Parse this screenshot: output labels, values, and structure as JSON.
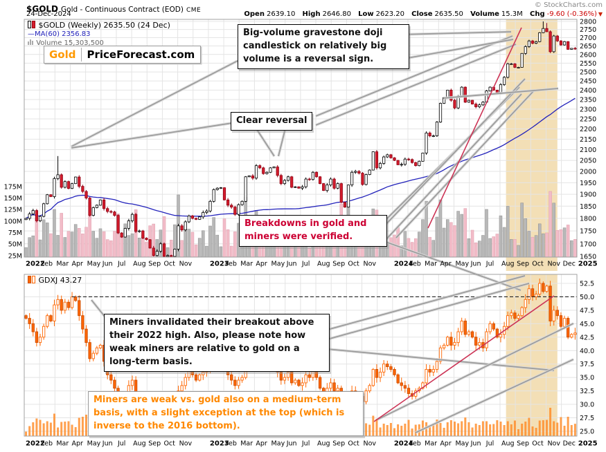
{
  "header": {
    "symbol": "$GOLD",
    "name": "Gold - Continuous Contract (EOD)",
    "exchange": "CME",
    "copyright": "© StockCharts.com",
    "date": "24-Dec-2024",
    "labels": {
      "open": "Open",
      "high": "High",
      "low": "Low",
      "close": "Close",
      "volume": "Volume",
      "chg": "Chg"
    },
    "values": {
      "open": "2639.10",
      "high": "2646.80",
      "low": "2623.20",
      "close": "2635.50",
      "volume": "15.3M",
      "chg": "-9.60 (-0.36%)"
    }
  },
  "logo": {
    "left": "Gold",
    "right": "PriceForecast.com"
  },
  "gold_panel": {
    "legend": "$GOLD (Weekly) 2635.50 (24 Dec)",
    "ma_dash": "—",
    "ma_legend": "MA(60) 2356.83",
    "volume_legend": "Volume 15,303,500"
  },
  "gdxj_panel": {
    "legend": "GDXJ 43.27"
  },
  "annotations": {
    "big_volume": "Big-volume gravestone doji candlestick on relatively big volume is a reversal sign.",
    "clear_reversal": "Clear reversal",
    "breakdowns": "Breakdowns in gold and miners were verified.",
    "miners_invalidated": "Miners invalidated their breakout above their 2022 high. Also, please note how weak miners are relative to gold on a long-term basis.",
    "miners_weak": "Miners are weak vs. gold also on a medium-term basis, with a slight exception at the top (which is inverse to the 2016 bottom)."
  },
  "colors": {
    "up_candle": "#ffffff",
    "down_candle": "#d41c2c",
    "down_stroke": "#8e0012",
    "gdxj": "#ff6600",
    "gdxj_stroke": "#cc4d00",
    "ma": "#2222bb",
    "band": "#f3dfb6",
    "vol_up": "#b8b8b8",
    "vol_down": "#f2bcc8",
    "grid": "#e4e4e4",
    "border": "#a0a0a0",
    "red_line": "#cc3355",
    "gray_line": "#9b9b9b",
    "accent_red": "#cc0033",
    "accent_orange": "#ff8800"
  },
  "chart_data": [
    {
      "type": "candlestick",
      "symbol": "$GOLD",
      "timeframe": "weekly",
      "title": "$GOLD (Weekly)",
      "scale": "log",
      "ylim": [
        1650,
        2800
      ],
      "yticks": [
        2800,
        2750,
        2700,
        2650,
        2600,
        2550,
        2500,
        2450,
        2400,
        2350,
        2300,
        2250,
        2200,
        2150,
        2100,
        2050,
        2000,
        1950,
        1900,
        1850,
        1800,
        1750,
        1700,
        1650
      ],
      "volume_ticks": [
        175,
        150,
        125,
        100,
        75,
        50,
        25
      ],
      "months": [
        [
          "2022",
          0,
          1
        ],
        [
          "Feb",
          1,
          0
        ],
        [
          "Mar",
          2,
          0
        ],
        [
          "Apr",
          3,
          0
        ],
        [
          "May",
          4,
          0
        ],
        [
          "Jun",
          5,
          0
        ],
        [
          "Jul",
          6,
          0
        ],
        [
          "Aug",
          7,
          0
        ],
        [
          "Sep",
          8,
          0
        ],
        [
          "Oct",
          9,
          0
        ],
        [
          "Nov",
          10,
          0
        ],
        [
          "2023",
          12,
          1
        ],
        [
          "Feb",
          13,
          0
        ],
        [
          "Mar",
          14,
          0
        ],
        [
          "Apr",
          15,
          0
        ],
        [
          "May",
          16,
          0
        ],
        [
          "Jun",
          17,
          0
        ],
        [
          "Jul",
          18,
          0
        ],
        [
          "Aug",
          19,
          0
        ],
        [
          "Sep",
          20,
          0
        ],
        [
          "Oct",
          21,
          0
        ],
        [
          "Nov",
          22,
          0
        ],
        [
          "2024",
          24,
          1
        ],
        [
          "Feb",
          25,
          0
        ],
        [
          "Mar",
          26,
          0
        ],
        [
          "Apr",
          27,
          0
        ],
        [
          "May",
          28,
          0
        ],
        [
          "Jun",
          29,
          0
        ],
        [
          "Jul",
          30,
          0
        ],
        [
          "Aug",
          31,
          0
        ],
        [
          "Sep",
          32,
          0
        ],
        [
          "Oct",
          33,
          0
        ],
        [
          "Nov",
          34,
          0
        ],
        [
          "Dec",
          35,
          0
        ],
        [
          "2025",
          36,
          1
        ]
      ],
      "closes": [
        1800,
        1818,
        1832,
        1790,
        1808,
        1860,
        1898,
        1890,
        1968,
        1985,
        1930,
        1955,
        1925,
        1946,
        1975,
        1934,
        1912,
        1884,
        1812,
        1844,
        1854,
        1876,
        1840,
        1828,
        1826,
        1812,
        1742,
        1726,
        1760,
        1790,
        1816,
        1748,
        1750,
        1722,
        1716,
        1684,
        1656,
        1672,
        1700,
        1652,
        1656,
        1644,
        1680,
        1770,
        1754,
        1786,
        1810,
        1800,
        1796,
        1806,
        1824,
        1830,
        1870,
        1920,
        1926,
        1928,
        1876,
        1854,
        1846,
        1816,
        1856,
        1870,
        1976,
        1980,
        1970,
        2026,
        2016,
        1990,
        1996,
        2016,
        2020,
        1982,
        1946,
        1960,
        1976,
        1930,
        1932,
        1926,
        1932,
        1966,
        1964,
        1996,
        1976,
        1946,
        1916,
        1940,
        1966,
        1926,
        1946,
        1866,
        1846,
        1940,
        1996,
        2000,
        1992,
        1942,
        1986,
        2006,
        2090,
        2016,
        2036,
        2066,
        2076,
        2062,
        2050,
        2030,
        2032,
        2056,
        2054,
        2040,
        2026,
        2046,
        2084,
        2180,
        2166,
        2166,
        2234,
        2330,
        2360,
        2400,
        2346,
        2306,
        2368,
        2416,
        2336,
        2346,
        2326,
        2312,
        2322,
        2336,
        2396,
        2416,
        2400,
        2386,
        2430,
        2470,
        2546,
        2546,
        2526,
        2526,
        2606,
        2646,
        2680,
        2666,
        2676,
        2730,
        2756,
        2736,
        2616,
        2710,
        2680,
        2656,
        2676,
        2630,
        2636,
        2635
      ],
      "wick_highs": {
        "9": 2070,
        "146": 2800,
        "147": 2790
      },
      "ma_period": 60,
      "ma_last": 2356.83,
      "last_close": 2635.5,
      "highlight_band_weeks": [
        136,
        150.5
      ]
    },
    {
      "type": "candlestick",
      "symbol": "GDXJ",
      "timeframe": "weekly",
      "title": "GDXJ",
      "scale": "linear",
      "ylim": [
        25.0,
        52.5
      ],
      "yticks": [
        52.5,
        50.0,
        47.5,
        45.0,
        42.5,
        40.0,
        37.5,
        35.0,
        32.5,
        30.0,
        27.5,
        25.0
      ],
      "closes": [
        46.0,
        45.0,
        43.5,
        41.5,
        42.5,
        44.5,
        46.5,
        45.5,
        48.5,
        49.5,
        47.5,
        49.0,
        48.0,
        50.0,
        49.3,
        46.5,
        44.0,
        41.5,
        38.5,
        39.5,
        40.5,
        41.0,
        38.0,
        35.5,
        34.5,
        33.0,
        31.0,
        30.5,
        32.0,
        33.5,
        34.5,
        31.5,
        30.0,
        29.0,
        28.5,
        27.0,
        26.0,
        27.5,
        28.0,
        26.5,
        27.0,
        26.2,
        28.5,
        32.5,
        33.5,
        35.0,
        36.5,
        35.5,
        34.5,
        35.5,
        36.0,
        36.5,
        38.0,
        39.5,
        39.0,
        40.0,
        37.0,
        35.5,
        34.5,
        33.5,
        34.5,
        35.0,
        38.5,
        39.0,
        38.5,
        40.0,
        39.5,
        38.0,
        37.5,
        38.5,
        38.0,
        36.0,
        34.5,
        35.0,
        36.0,
        34.0,
        34.5,
        33.5,
        34.0,
        35.5,
        35.0,
        36.5,
        35.0,
        33.0,
        31.5,
        33.0,
        34.0,
        32.5,
        33.0,
        30.5,
        30.0,
        31.5,
        32.5,
        31.0,
        31.5,
        30.5,
        32.5,
        33.5,
        36.5,
        35.0,
        36.0,
        37.5,
        37.0,
        36.5,
        35.5,
        34.0,
        33.5,
        33.0,
        32.0,
        31.5,
        32.5,
        33.0,
        34.0,
        36.5,
        36.0,
        36.5,
        38.0,
        40.5,
        41.0,
        42.5,
        41.0,
        41.5,
        43.5,
        45.5,
        43.0,
        43.5,
        42.5,
        41.0,
        41.5,
        40.5,
        43.5,
        45.0,
        44.0,
        42.5,
        43.0,
        44.5,
        46.5,
        47.0,
        46.0,
        46.5,
        48.0,
        49.5,
        51.5,
        50.0,
        50.5,
        52.5,
        51.0,
        52.0,
        45.5,
        47.5,
        46.5,
        44.5,
        46.0,
        42.5,
        43.0,
        43.27
      ],
      "wick_highs": {
        "13": 50.9,
        "145": 53.4
      },
      "resistance_level": 50.0,
      "last_close": 43.27,
      "highlight_band_weeks": [
        136,
        150.5
      ]
    }
  ]
}
